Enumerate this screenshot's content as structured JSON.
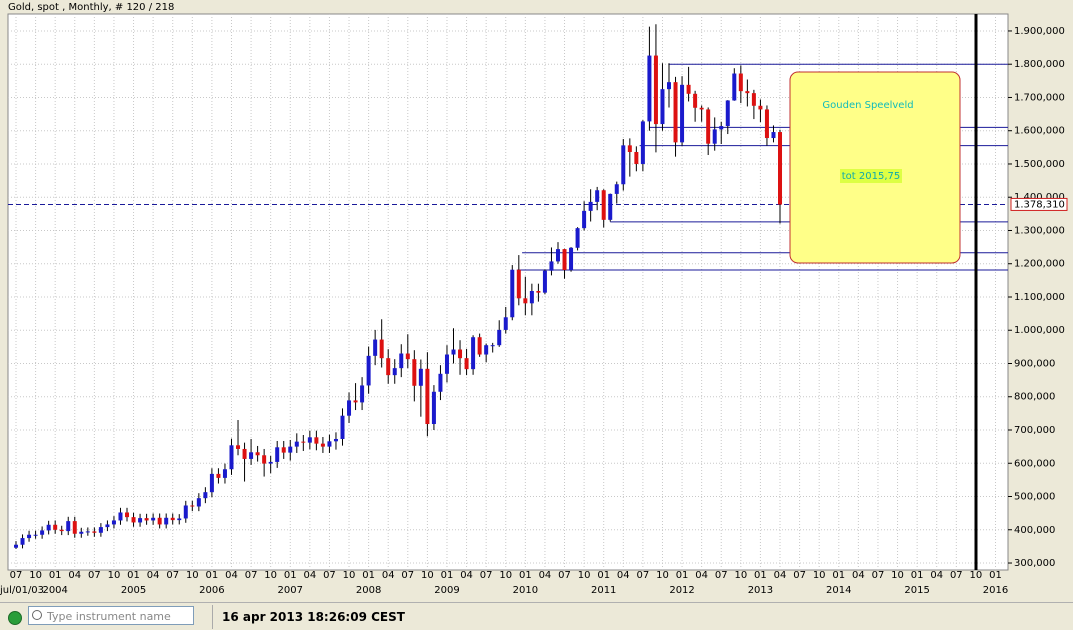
{
  "chart_data": {
    "type": "candlestick",
    "title": "Gold, spot , Monthly, # 120 / 218",
    "month_labels": [
      "07",
      "10",
      "01",
      "04",
      "07",
      "10",
      "01",
      "04",
      "07",
      "10",
      "01",
      "04",
      "07",
      "10",
      "01",
      "04",
      "07",
      "10",
      "01",
      "04",
      "07",
      "10",
      "01",
      "04",
      "07",
      "10",
      "01",
      "04",
      "07",
      "10",
      "01",
      "04",
      "07",
      "10",
      "01",
      "04",
      "07",
      "10",
      "01",
      "04",
      "07",
      "10",
      "01",
      "04",
      "07",
      "10",
      "01",
      "04",
      "07",
      "10",
      "01"
    ],
    "year_labels": [
      "jul/01/03",
      "2004",
      "2005",
      "2006",
      "2007",
      "2008",
      "2009",
      "2010",
      "2011",
      "2012",
      "2013",
      "2014",
      "2015",
      "2016"
    ],
    "open": [
      346,
      355,
      375,
      385,
      385,
      398,
      415,
      400,
      396,
      426,
      388,
      394,
      395,
      391,
      408,
      416,
      428,
      452,
      438,
      422,
      435,
      428,
      436,
      416,
      436,
      429,
      434,
      473,
      470,
      495,
      513,
      568,
      556,
      582,
      654,
      643,
      613,
      633,
      624,
      599,
      604,
      648,
      632,
      650,
      665,
      662,
      678,
      659,
      650,
      666,
      673,
      743,
      789,
      783,
      834,
      923,
      972,
      916,
      865,
      886,
      930,
      913,
      833,
      884,
      718,
      815,
      869,
      927,
      942,
      916,
      883,
      979,
      927,
      955,
      955,
      1001,
      1039,
      1182,
      1096,
      1081,
      1118,
      1113,
      1179,
      1207,
      1244,
      1181,
      1248,
      1307,
      1359,
      1386,
      1421,
      1332,
      1410,
      1439,
      1556,
      1536,
      1500,
      1628,
      1826,
      1620,
      1725,
      1746,
      1565,
      1738,
      1711,
      1669,
      1664,
      1561,
      1604,
      1614,
      1691,
      1772,
      1719,
      1713,
      1675,
      1664,
      1578,
      1596
    ],
    "high": [
      366,
      386,
      397,
      397,
      410,
      427,
      428,
      412,
      439,
      439,
      406,
      407,
      407,
      420,
      428,
      441,
      466,
      466,
      451,
      448,
      448,
      449,
      449,
      449,
      449,
      447,
      487,
      487,
      510,
      528,
      585,
      585,
      599,
      674,
      730,
      662,
      673,
      652,
      643,
      622,
      667,
      667,
      670,
      690,
      685,
      698,
      698,
      679,
      686,
      693,
      765,
      813,
      841,
      859,
      951,
      1001,
      1033,
      943,
      913,
      958,
      988,
      940,
      912,
      934,
      835,
      895,
      955,
      1006,
      970,
      944,
      985,
      990,
      960,
      962,
      1030,
      1070,
      1196,
      1226,
      1161,
      1140,
      1140,
      1183,
      1249,
      1265,
      1245,
      1250,
      1310,
      1388,
      1424,
      1431,
      1424,
      1411,
      1447,
      1575,
      1577,
      1553,
      1632,
      1913,
      1920,
      1803,
      1803,
      1762,
      1764,
      1792,
      1720,
      1676,
      1670,
      1640,
      1627,
      1692,
      1788,
      1796,
      1754,
      1723,
      1694,
      1676,
      1616,
      1603
    ],
    "low": [
      342,
      344,
      364,
      373,
      373,
      386,
      388,
      384,
      384,
      376,
      376,
      382,
      379,
      379,
      396,
      404,
      415,
      425,
      409,
      409,
      415,
      415,
      404,
      404,
      416,
      416,
      421,
      456,
      456,
      480,
      498,
      539,
      539,
      565,
      624,
      545,
      595,
      605,
      560,
      570,
      586,
      613,
      608,
      631,
      637,
      642,
      639,
      631,
      631,
      641,
      653,
      721,
      760,
      760,
      809,
      895,
      888,
      839,
      839,
      859,
      886,
      786,
      740,
      681,
      700,
      790,
      843,
      900,
      866,
      865,
      866,
      920,
      904,
      933,
      950,
      990,
      1030,
      1075,
      1045,
      1045,
      1086,
      1108,
      1165,
      1200,
      1155,
      1176,
      1240,
      1300,
      1327,
      1361,
      1309,
      1327,
      1381,
      1420,
      1462,
      1478,
      1478,
      1600,
      1535,
      1600,
      1670,
      1522,
      1555,
      1688,
      1627,
      1627,
      1527,
      1540,
      1560,
      1590,
      1690,
      1683,
      1673,
      1635,
      1626,
      1555,
      1565,
      1321
    ],
    "close": [
      355,
      375,
      385,
      385,
      398,
      415,
      400,
      396,
      426,
      388,
      394,
      395,
      391,
      408,
      416,
      428,
      452,
      438,
      422,
      435,
      428,
      436,
      416,
      436,
      429,
      434,
      473,
      470,
      495,
      513,
      568,
      556,
      582,
      654,
      643,
      613,
      633,
      624,
      599,
      604,
      648,
      632,
      650,
      665,
      662,
      678,
      659,
      650,
      666,
      673,
      743,
      789,
      783,
      834,
      923,
      972,
      916,
      865,
      886,
      930,
      913,
      833,
      884,
      718,
      815,
      869,
      927,
      942,
      916,
      883,
      979,
      927,
      955,
      955,
      1001,
      1039,
      1182,
      1096,
      1081,
      1118,
      1113,
      1179,
      1207,
      1244,
      1181,
      1248,
      1307,
      1359,
      1386,
      1421,
      1332,
      1410,
      1439,
      1556,
      1536,
      1500,
      1628,
      1826,
      1620,
      1725,
      1746,
      1565,
      1738,
      1711,
      1669,
      1664,
      1561,
      1604,
      1614,
      1691,
      1772,
      1719,
      1713,
      1675,
      1664,
      1578,
      1596,
      1378
    ],
    "up_color": "#1a1acc",
    "down_color": "#dd1111",
    "ylim": [
      279,
      1951
    ],
    "yticks": [
      {
        "value": 300,
        "label": "300,000"
      },
      {
        "value": 400,
        "label": "400,000"
      },
      {
        "value": 500,
        "label": "500,000"
      },
      {
        "value": 600,
        "label": "600,000"
      },
      {
        "value": 700,
        "label": "700,000"
      },
      {
        "value": 800,
        "label": "800,000"
      },
      {
        "value": 900,
        "label": "900,000"
      },
      {
        "value": 1000,
        "label": "1.000,000"
      },
      {
        "value": 1100,
        "label": "1.100,000"
      },
      {
        "value": 1200,
        "label": "1.200,000"
      },
      {
        "value": 1300,
        "label": "1.300,000"
      },
      {
        "value": 1400,
        "label": "1.400,000"
      },
      {
        "value": 1500,
        "label": "1.500,000"
      },
      {
        "value": 1600,
        "label": "1.600,000"
      },
      {
        "value": 1700,
        "label": "1.700,000"
      },
      {
        "value": 1800,
        "label": "1.800,000"
      },
      {
        "value": 1900,
        "label": "1.900,000"
      }
    ],
    "levels": [
      1800,
      1610,
      1555,
      1326,
      1233,
      1181
    ],
    "last_price": {
      "value": 1378.31,
      "label": "1.378,310"
    },
    "annotations": [
      "Gouden Speelveld",
      "tot 2015,75"
    ],
    "grid": true
  },
  "status_bar": {
    "search_placeholder": "Type instrument name",
    "timestamp": "16 apr 2013 18:26:09 CEST"
  }
}
